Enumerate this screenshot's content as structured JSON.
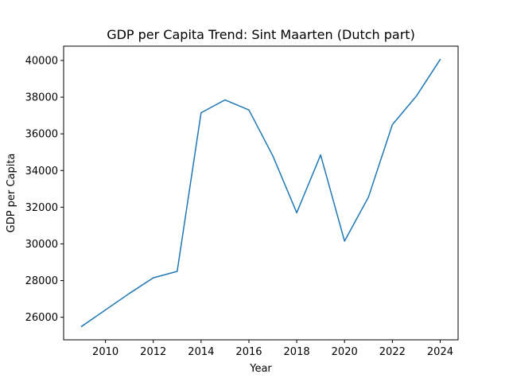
{
  "chart_data": {
    "type": "line",
    "title": "GDP per Capita Trend: Sint Maarten (Dutch part)",
    "xlabel": "Year",
    "ylabel": "GDP per Capita",
    "x": [
      2009,
      2010,
      2011,
      2012,
      2013,
      2014,
      2015,
      2016,
      2017,
      2018,
      2019,
      2020,
      2021,
      2022,
      2023,
      2024
    ],
    "series": [
      {
        "name": "",
        "color": "#1f77b4",
        "values": [
          25500,
          26400,
          27300,
          28150,
          28500,
          37150,
          37850,
          37300,
          34800,
          31700,
          34850,
          30150,
          32550,
          36500,
          38050,
          40050
        ]
      }
    ],
    "xlim": [
      2008.25,
      2024.75
    ],
    "ylim": [
      24770,
      40780
    ],
    "xticks": [
      2010,
      2012,
      2014,
      2016,
      2018,
      2020,
      2022,
      2024
    ],
    "xtick_labels": [
      "2010",
      "2012",
      "2014",
      "2016",
      "2018",
      "2020",
      "2022",
      "2024"
    ],
    "yticks": [
      26000,
      28000,
      30000,
      32000,
      34000,
      36000,
      38000,
      40000
    ],
    "ytick_labels": [
      "26000",
      "28000",
      "30000",
      "32000",
      "34000",
      "36000",
      "38000",
      "40000"
    ],
    "grid": false,
    "legend": "none"
  }
}
